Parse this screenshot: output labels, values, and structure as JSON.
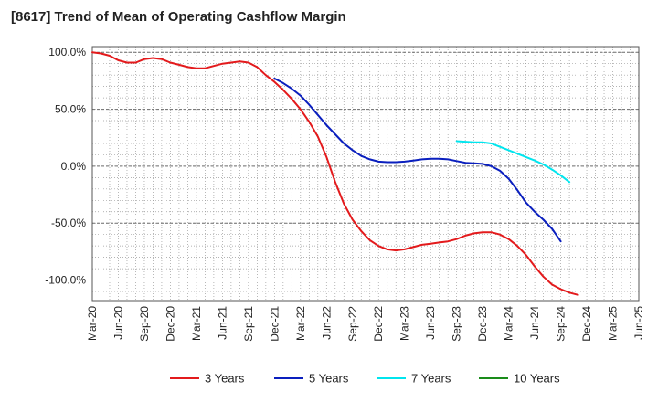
{
  "chart_data": {
    "type": "line",
    "title": "[8617]  Trend of Mean of Operating Cashflow Margin",
    "xlabel": "",
    "ylabel": "",
    "ylim": [
      -118,
      105
    ],
    "y_ticks": [
      100,
      50,
      0,
      -50,
      -100
    ],
    "y_tick_labels": [
      "100.0%",
      "50.0%",
      "0.0%",
      "-50.0%",
      "-100.0%"
    ],
    "x_ticks": [
      0,
      3,
      6,
      9,
      12,
      15,
      18,
      21,
      24,
      27,
      30,
      33,
      36,
      39,
      42,
      45,
      48,
      51,
      54,
      57,
      60,
      63
    ],
    "x_tick_labels": [
      "Mar-20",
      "Jun-20",
      "Sep-20",
      "Dec-20",
      "Mar-21",
      "Jun-21",
      "Sep-21",
      "Dec-21",
      "Mar-22",
      "Jun-22",
      "Sep-22",
      "Dec-22",
      "Mar-23",
      "Jun-23",
      "Sep-23",
      "Dec-23",
      "Mar-24",
      "Jun-24",
      "Sep-24",
      "Dec-24",
      "Mar-25",
      "Jun-25"
    ],
    "xlim": [
      0,
      63
    ],
    "grid": true,
    "legend_position": "bottom",
    "series": [
      {
        "name": "3 Years",
        "color": "#e31a1c",
        "points": [
          [
            0,
            100
          ],
          [
            1,
            99
          ],
          [
            2,
            97
          ],
          [
            3,
            93
          ],
          [
            4,
            91
          ],
          [
            5,
            91
          ],
          [
            6,
            94
          ],
          [
            7,
            95
          ],
          [
            8,
            94
          ],
          [
            9,
            91
          ],
          [
            10,
            89
          ],
          [
            11,
            87
          ],
          [
            12,
            86
          ],
          [
            13,
            86
          ],
          [
            14,
            88
          ],
          [
            15,
            90
          ],
          [
            16,
            91
          ],
          [
            17,
            92
          ],
          [
            18,
            91
          ],
          [
            19,
            87
          ],
          [
            20,
            80
          ],
          [
            21,
            74
          ],
          [
            22,
            67
          ],
          [
            23,
            59
          ],
          [
            24,
            50
          ],
          [
            25,
            39
          ],
          [
            26,
            26
          ],
          [
            27,
            8
          ],
          [
            28,
            -14
          ],
          [
            29,
            -33
          ],
          [
            30,
            -47
          ],
          [
            31,
            -57
          ],
          [
            32,
            -65
          ],
          [
            33,
            -70
          ],
          [
            34,
            -73
          ],
          [
            35,
            -74
          ],
          [
            36,
            -73
          ],
          [
            37,
            -71
          ],
          [
            38,
            -69
          ],
          [
            39,
            -68
          ],
          [
            40,
            -67
          ],
          [
            41,
            -66
          ],
          [
            42,
            -64
          ],
          [
            43,
            -61
          ],
          [
            44,
            -59
          ],
          [
            45,
            -58
          ],
          [
            46,
            -58
          ],
          [
            47,
            -60
          ],
          [
            48,
            -64
          ],
          [
            49,
            -70
          ],
          [
            50,
            -78
          ],
          [
            51,
            -88
          ],
          [
            52,
            -97
          ],
          [
            53,
            -104
          ],
          [
            54,
            -108
          ],
          [
            55,
            -111
          ],
          [
            56,
            -113
          ]
        ]
      },
      {
        "name": "5 Years",
        "color": "#0a1fbe",
        "points": [
          [
            21,
            77
          ],
          [
            22,
            73
          ],
          [
            23,
            68
          ],
          [
            24,
            62
          ],
          [
            25,
            54
          ],
          [
            26,
            45
          ],
          [
            27,
            36
          ],
          [
            28,
            28
          ],
          [
            29,
            20
          ],
          [
            30,
            14
          ],
          [
            31,
            9
          ],
          [
            32,
            6
          ],
          [
            33,
            4
          ],
          [
            34,
            3.5
          ],
          [
            35,
            3.5
          ],
          [
            36,
            4
          ],
          [
            37,
            5
          ],
          [
            38,
            6
          ],
          [
            39,
            6.5
          ],
          [
            40,
            6.5
          ],
          [
            41,
            6
          ],
          [
            42,
            4.5
          ],
          [
            43,
            3
          ],
          [
            44,
            2.5
          ],
          [
            45,
            2
          ],
          [
            46,
            0
          ],
          [
            47,
            -4
          ],
          [
            48,
            -11
          ],
          [
            49,
            -21
          ],
          [
            50,
            -32
          ],
          [
            51,
            -40
          ],
          [
            52,
            -47
          ],
          [
            53,
            -55
          ],
          [
            54,
            -66
          ]
        ]
      },
      {
        "name": "7 Years",
        "color": "#00e5ee",
        "points": [
          [
            42,
            22
          ],
          [
            43,
            21.5
          ],
          [
            44,
            21
          ],
          [
            45,
            21
          ],
          [
            46,
            20
          ],
          [
            47,
            17
          ],
          [
            48,
            14
          ],
          [
            49,
            11
          ],
          [
            50,
            8
          ],
          [
            51,
            5
          ],
          [
            52,
            1.5
          ],
          [
            53,
            -3
          ],
          [
            54,
            -8
          ],
          [
            55,
            -14
          ]
        ]
      },
      {
        "name": "10 Years",
        "color": "#1a8c1a",
        "points": []
      }
    ]
  }
}
